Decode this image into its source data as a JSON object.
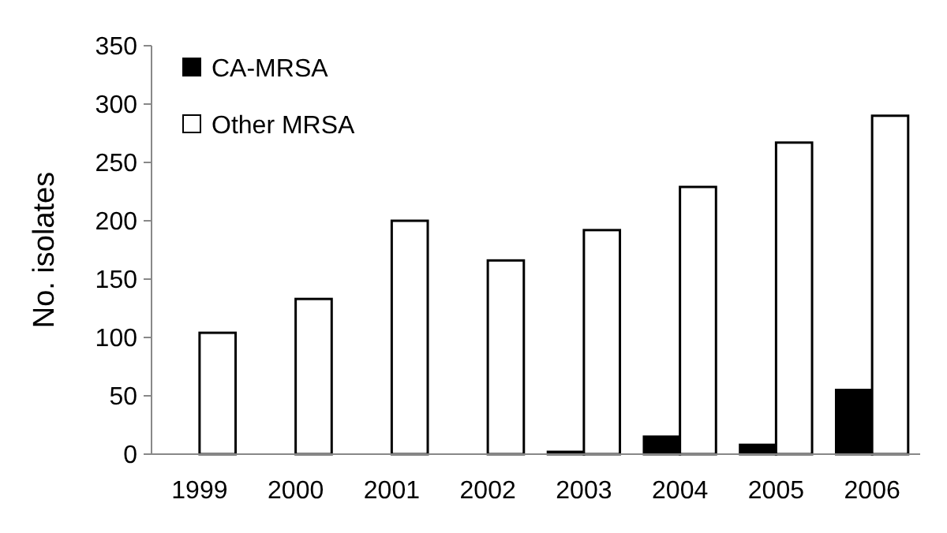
{
  "chart_data": {
    "type": "bar",
    "ylabel": "No. isolates",
    "categories": [
      "1999",
      "2000",
      "2001",
      "2002",
      "2003",
      "2004",
      "2005",
      "2006"
    ],
    "series": [
      {
        "name": "CA-MRSA",
        "color": "#000000",
        "values": [
          0,
          0,
          0,
          0,
          2,
          15,
          8,
          55
        ]
      },
      {
        "name": "Other MRSA",
        "color": "#ffffff",
        "values": [
          104,
          133,
          200,
          166,
          192,
          229,
          267,
          290
        ]
      }
    ],
    "ylim": [
      0,
      350
    ],
    "yticks": [
      0,
      50,
      100,
      150,
      200,
      250,
      300,
      350
    ],
    "legend": "top left",
    "grid": false
  }
}
